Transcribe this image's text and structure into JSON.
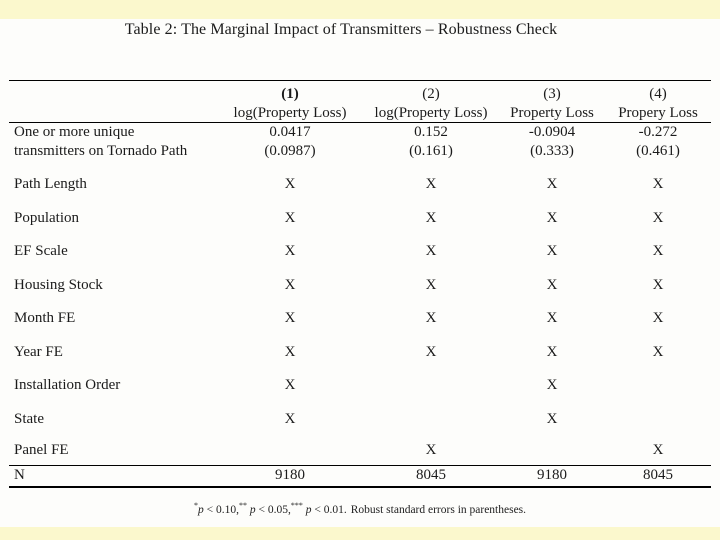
{
  "colors": {
    "band_yellow": "#fbf8cd",
    "page_background": "#fdfdfb",
    "text": "#1b1b1b",
    "rule": "#000000"
  },
  "table": {
    "title": "Table 2: The Marginal Impact of Transmitters – Robustness Check",
    "header": {
      "numbers": [
        "(1)",
        "(2)",
        "(3)",
        "(4)"
      ],
      "labels": [
        "log(Property Loss)",
        "log(Property Loss)",
        "Property Loss",
        "Propery Loss"
      ]
    },
    "coef_row": {
      "label_line1": "One or more unique",
      "label_line2": "transmitters on Tornado Path",
      "estimates": [
        "0.0417",
        "0.152",
        "-0.0904",
        "-0.272"
      ],
      "std_errors": [
        "(0.0987)",
        "(0.161)",
        "(0.333)",
        "(0.461)"
      ]
    },
    "control_rows": [
      {
        "label": "Path Length",
        "cells": [
          "X",
          "X",
          "X",
          "X"
        ]
      },
      {
        "label": "Population",
        "cells": [
          "X",
          "X",
          "X",
          "X"
        ]
      },
      {
        "label": "EF Scale",
        "cells": [
          "X",
          "X",
          "X",
          "X"
        ]
      },
      {
        "label": "Housing Stock",
        "cells": [
          "X",
          "X",
          "X",
          "X"
        ]
      },
      {
        "label": "Month FE",
        "cells": [
          "X",
          "X",
          "X",
          "X"
        ]
      },
      {
        "label": "Year FE",
        "cells": [
          "X",
          "X",
          "X",
          "X"
        ]
      },
      {
        "label": "Installation Order",
        "cells": [
          "X",
          "",
          "X",
          ""
        ]
      },
      {
        "label": "State",
        "cells": [
          "X",
          "",
          "X",
          ""
        ]
      },
      {
        "label": "Panel FE",
        "cells": [
          "",
          "X",
          "",
          "X"
        ]
      }
    ],
    "n_row": {
      "label": "N",
      "values": [
        "9180",
        "8045",
        "9180",
        "8045"
      ]
    }
  },
  "footnote": {
    "sig_levels": [
      {
        "stars": "*",
        "var": "p",
        "rest": " < 0.10,"
      },
      {
        "stars": "**",
        "var": "p",
        "rest": " < 0.05,"
      },
      {
        "stars": "***",
        "var": "p",
        "rest": " < 0.01."
      }
    ],
    "tail": "Robust standard errors in parentheses."
  }
}
